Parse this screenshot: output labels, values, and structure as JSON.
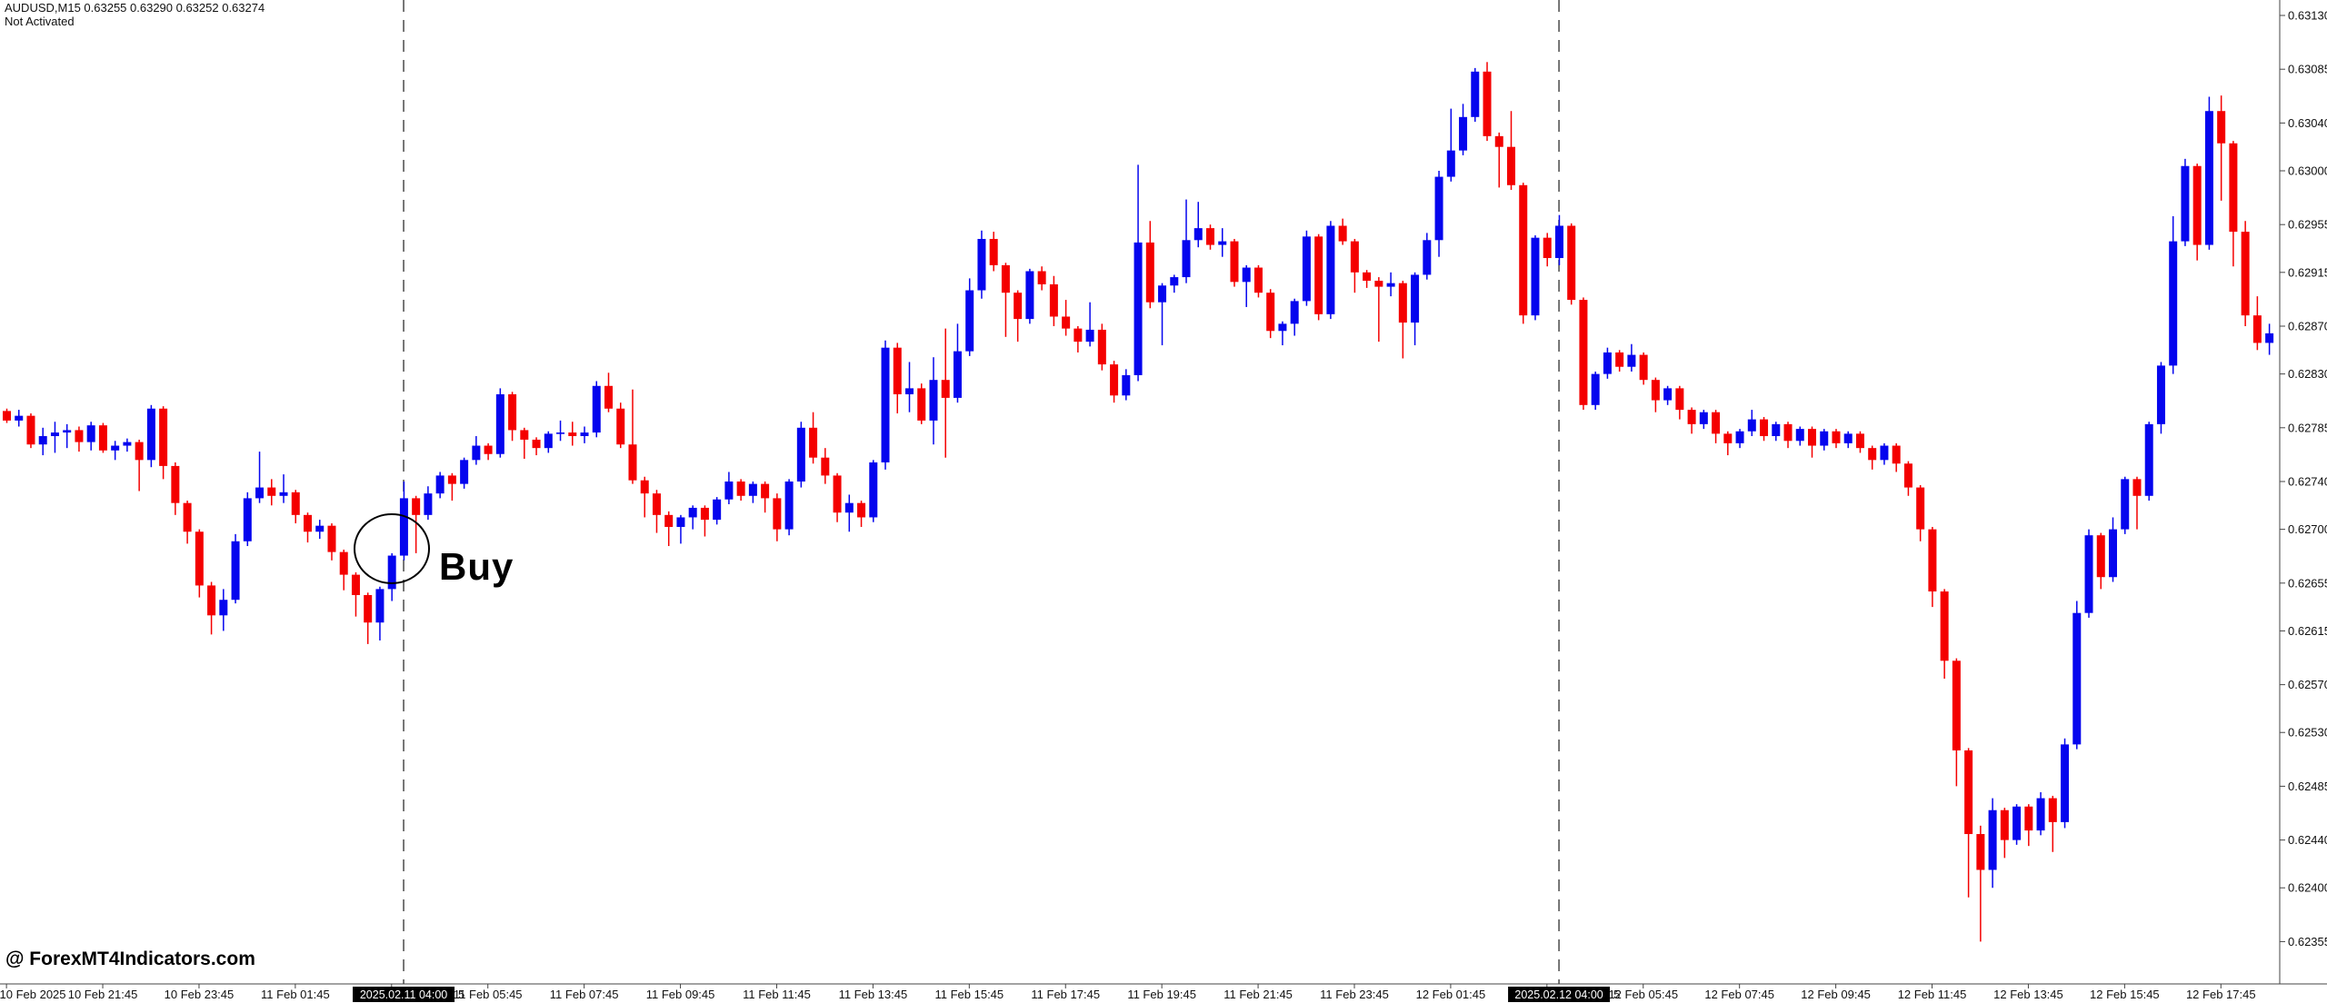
{
  "window": {
    "header_line1": "AUDUSD,M15  0.63255 0.63290 0.63252 0.63274",
    "header_line2": "Not Activated"
  },
  "watermark": "@ ForexMT4Indicators.com",
  "buy_annotation": {
    "label": "Buy"
  },
  "colors": {
    "background": "#FFFFFF",
    "bull": "#0505EE",
    "bear": "#F40000",
    "axis_text": "#111111",
    "axis_line": "#444444",
    "dashed_line": "#555555",
    "marker_box_bg": "#000000",
    "marker_box_text": "#FFFFFF",
    "annotation": "#000000"
  },
  "chart_data": {
    "type": "candlestick",
    "title": "AUDUSD,M15",
    "symbol": "AUDUSD",
    "timeframe": "M15",
    "grid": false,
    "price_axis_labels": [
      "0.63130",
      "0.63085",
      "0.63040",
      "0.63000",
      "0.62955",
      "0.62915",
      "0.62870",
      "0.62830",
      "0.62785",
      "0.62740",
      "0.62700",
      "0.62655",
      "0.62615",
      "0.62570",
      "0.62530",
      "0.62485",
      "0.62440",
      "0.62400",
      "0.62355"
    ],
    "time_axis_labels": [
      "10 Feb 2025",
      "10 Feb 21:45",
      "10 Feb 23:45",
      "11 Feb 01:45",
      "11 Feb 03:45",
      "11 Feb 05:45",
      "11 Feb 07:45",
      "11 Feb 09:45",
      "11 Feb 11:45",
      "11 Feb 13:45",
      "11 Feb 15:45",
      "11 Feb 17:45",
      "11 Feb 19:45",
      "11 Feb 21:45",
      "11 Feb 23:45",
      "12 Feb 01:45",
      "12 Feb 03:45",
      "12 Feb 05:45",
      "12 Feb 07:45",
      "12 Feb 09:45",
      "12 Feb 11:45",
      "12 Feb 13:45",
      "12 Feb 15:45",
      "12 Feb 17:45"
    ],
    "time_markers": [
      {
        "text": "2025.02.11 04:00",
        "tail": "5",
        "slot": 4
      },
      {
        "text": "2025.02.12 04:00",
        "tail": "5",
        "slot": 16
      }
    ],
    "price_scale_note": "values are price x 100000",
    "candles": [
      [
        62799,
        62801,
        62789,
        62791
      ],
      [
        62791,
        62800,
        62786,
        62795
      ],
      [
        62795,
        62797,
        62768,
        62771
      ],
      [
        62771,
        62785,
        62762,
        62778
      ],
      [
        62778,
        62790,
        62764,
        62781
      ],
      [
        62781,
        62788,
        62768,
        62783
      ],
      [
        62783,
        62786,
        62765,
        62773
      ],
      [
        62773,
        62790,
        62766,
        62787
      ],
      [
        62787,
        62789,
        62764,
        62766
      ],
      [
        62766,
        62774,
        62758,
        62770
      ],
      [
        62770,
        62776,
        62765,
        62773
      ],
      [
        62773,
        62775,
        62732,
        62758
      ],
      [
        62758,
        62804,
        62752,
        62801
      ],
      [
        62801,
        62803,
        62742,
        62753
      ],
      [
        62753,
        62756,
        62712,
        62722
      ],
      [
        62722,
        62724,
        62688,
        62698
      ],
      [
        62698,
        62700,
        62643,
        62653
      ],
      [
        62653,
        62656,
        62612,
        62628
      ],
      [
        62628,
        62650,
        62615,
        62641
      ],
      [
        62641,
        62696,
        62638,
        62690
      ],
      [
        62690,
        62731,
        62686,
        62726
      ],
      [
        62726,
        62765,
        62722,
        62735
      ],
      [
        62735,
        62742,
        62720,
        62728
      ],
      [
        62728,
        62746,
        62722,
        62731
      ],
      [
        62731,
        62733,
        62705,
        62712
      ],
      [
        62712,
        62714,
        62689,
        62698
      ],
      [
        62698,
        62708,
        62692,
        62703
      ],
      [
        62703,
        62705,
        62674,
        62681
      ],
      [
        62681,
        62683,
        62649,
        62662
      ],
      [
        62662,
        62664,
        62627,
        62645
      ],
      [
        62645,
        62647,
        62604,
        62622
      ],
      [
        62622,
        62652,
        62607,
        62650
      ],
      [
        62650,
        62680,
        62640,
        62678
      ],
      [
        62678,
        62740,
        62674,
        62726
      ],
      [
        62726,
        62728,
        62680,
        62712
      ],
      [
        62712,
        62736,
        62708,
        62730
      ],
      [
        62730,
        62748,
        62726,
        62745
      ],
      [
        62745,
        62747,
        62724,
        62738
      ],
      [
        62738,
        62760,
        62734,
        62758
      ],
      [
        62758,
        62778,
        62754,
        62770
      ],
      [
        62770,
        62772,
        62758,
        62763
      ],
      [
        62763,
        62818,
        62760,
        62813
      ],
      [
        62813,
        62815,
        62774,
        62783
      ],
      [
        62783,
        62785,
        62759,
        62775
      ],
      [
        62775,
        62777,
        62762,
        62768
      ],
      [
        62768,
        62782,
        62764,
        62780
      ],
      [
        62780,
        62791,
        62774,
        62781
      ],
      [
        62781,
        62790,
        62770,
        62778
      ],
      [
        62778,
        62786,
        62772,
        62781
      ],
      [
        62781,
        62824,
        62777,
        62820
      ],
      [
        62820,
        62831,
        62798,
        62801
      ],
      [
        62801,
        62806,
        62768,
        62771
      ],
      [
        62771,
        62817,
        62738,
        62741
      ],
      [
        62741,
        62744,
        62710,
        62730
      ],
      [
        62730,
        62733,
        62697,
        62712
      ],
      [
        62712,
        62715,
        62686,
        62702
      ],
      [
        62702,
        62712,
        62688,
        62710
      ],
      [
        62710,
        62720,
        62700,
        62718
      ],
      [
        62718,
        62720,
        62694,
        62708
      ],
      [
        62708,
        62727,
        62704,
        62725
      ],
      [
        62725,
        62748,
        62721,
        62740
      ],
      [
        62740,
        62742,
        62724,
        62728
      ],
      [
        62728,
        62740,
        62722,
        62738
      ],
      [
        62738,
        62740,
        62714,
        62726
      ],
      [
        62726,
        62730,
        62690,
        62700
      ],
      [
        62700,
        62742,
        62695,
        62740
      ],
      [
        62740,
        62790,
        62735,
        62785
      ],
      [
        62785,
        62798,
        62755,
        62760
      ],
      [
        62760,
        62768,
        62738,
        62745
      ],
      [
        62745,
        62747,
        62706,
        62714
      ],
      [
        62714,
        62729,
        62698,
        62722
      ],
      [
        62722,
        62724,
        62702,
        62710
      ],
      [
        62710,
        62758,
        62706,
        62756
      ],
      [
        62756,
        62858,
        62750,
        62852
      ],
      [
        62852,
        62856,
        62797,
        62813
      ],
      [
        62813,
        62840,
        62798,
        62818
      ],
      [
        62818,
        62822,
        62788,
        62791
      ],
      [
        62791,
        62844,
        62771,
        62825
      ],
      [
        62825,
        62868,
        62760,
        62810
      ],
      [
        62810,
        62872,
        62806,
        62849
      ],
      [
        62849,
        62910,
        62845,
        62900
      ],
      [
        62900,
        62950,
        62893,
        62943
      ],
      [
        62943,
        62949,
        62916,
        62921
      ],
      [
        62921,
        62923,
        62861,
        62898
      ],
      [
        62898,
        62900,
        62857,
        62876
      ],
      [
        62876,
        62918,
        62872,
        62916
      ],
      [
        62916,
        62920,
        62900,
        62905
      ],
      [
        62905,
        62912,
        62870,
        62878
      ],
      [
        62878,
        62892,
        62862,
        62868
      ],
      [
        62868,
        62870,
        62848,
        62857
      ],
      [
        62857,
        62890,
        62853,
        62867
      ],
      [
        62867,
        62872,
        62833,
        62838
      ],
      [
        62838,
        62841,
        62806,
        62812
      ],
      [
        62812,
        62834,
        62808,
        62829
      ],
      [
        62829,
        63005,
        62824,
        62940
      ],
      [
        62940,
        62958,
        62885,
        62890
      ],
      [
        62890,
        62906,
        62854,
        62904
      ],
      [
        62904,
        62913,
        62898,
        62911
      ],
      [
        62911,
        62976,
        62906,
        62942
      ],
      [
        62942,
        62974,
        62936,
        62952
      ],
      [
        62952,
        62955,
        62934,
        62938
      ],
      [
        62938,
        62952,
        62928,
        62941
      ],
      [
        62941,
        62943,
        62903,
        62907
      ],
      [
        62907,
        62921,
        62886,
        62919
      ],
      [
        62919,
        62921,
        62894,
        62898
      ],
      [
        62898,
        62901,
        62860,
        62866
      ],
      [
        62866,
        62874,
        62854,
        62872
      ],
      [
        62872,
        62893,
        62862,
        62891
      ],
      [
        62891,
        62950,
        62887,
        62945
      ],
      [
        62945,
        62947,
        62875,
        62880
      ],
      [
        62880,
        62958,
        62876,
        62954
      ],
      [
        62954,
        62960,
        62938,
        62941
      ],
      [
        62941,
        62943,
        62898,
        62915
      ],
      [
        62915,
        62917,
        62902,
        62908
      ],
      [
        62908,
        62911,
        62857,
        62903
      ],
      [
        62903,
        62915,
        62895,
        62906
      ],
      [
        62906,
        62908,
        62843,
        62873
      ],
      [
        62873,
        62915,
        62854,
        62913
      ],
      [
        62913,
        62948,
        62909,
        62942
      ],
      [
        62942,
        63000,
        62928,
        62995
      ],
      [
        62995,
        63052,
        62991,
        63017
      ],
      [
        63017,
        63056,
        63013,
        63045
      ],
      [
        63045,
        63086,
        63041,
        63083
      ],
      [
        63083,
        63091,
        63025,
        63029
      ],
      [
        63029,
        63032,
        62986,
        63020
      ],
      [
        63020,
        63050,
        62984,
        62988
      ],
      [
        62988,
        62990,
        62872,
        62879
      ],
      [
        62879,
        62946,
        62875,
        62944
      ],
      [
        62944,
        62948,
        62920,
        62927
      ],
      [
        62927,
        62963,
        62921,
        62954
      ],
      [
        62954,
        62956,
        62888,
        62892
      ],
      [
        62892,
        62894,
        62800,
        62804
      ],
      [
        62804,
        62832,
        62800,
        62830
      ],
      [
        62830,
        62852,
        62826,
        62848
      ],
      [
        62848,
        62850,
        62832,
        62836
      ],
      [
        62836,
        62855,
        62832,
        62846
      ],
      [
        62846,
        62848,
        62821,
        62825
      ],
      [
        62825,
        62827,
        62798,
        62808
      ],
      [
        62808,
        62820,
        62804,
        62818
      ],
      [
        62818,
        62820,
        62792,
        62800
      ],
      [
        62800,
        62802,
        62780,
        62788
      ],
      [
        62788,
        62800,
        62784,
        62798
      ],
      [
        62798,
        62800,
        62772,
        62780
      ],
      [
        62780,
        62782,
        62762,
        62772
      ],
      [
        62772,
        62784,
        62768,
        62782
      ],
      [
        62782,
        62800,
        62778,
        62792
      ],
      [
        62792,
        62794,
        62774,
        62778
      ],
      [
        62778,
        62790,
        62774,
        62788
      ],
      [
        62788,
        62790,
        62768,
        62774
      ],
      [
        62774,
        62786,
        62770,
        62784
      ],
      [
        62784,
        62786,
        62760,
        62770
      ],
      [
        62770,
        62784,
        62766,
        62782
      ],
      [
        62782,
        62784,
        62768,
        62772
      ],
      [
        62772,
        62782,
        62768,
        62780
      ],
      [
        62780,
        62782,
        62764,
        62768
      ],
      [
        62768,
        62770,
        62750,
        62758
      ],
      [
        62758,
        62772,
        62754,
        62770
      ],
      [
        62770,
        62772,
        62748,
        62755
      ],
      [
        62755,
        62757,
        62728,
        62735
      ],
      [
        62735,
        62737,
        62690,
        62700
      ],
      [
        62700,
        62702,
        62635,
        62648
      ],
      [
        62648,
        62650,
        62575,
        62590
      ],
      [
        62590,
        62592,
        62485,
        62515
      ],
      [
        62515,
        62517,
        62392,
        62445
      ],
      [
        62445,
        62452,
        62355,
        62415
      ],
      [
        62415,
        62475,
        62400,
        62465
      ],
      [
        62465,
        62467,
        62425,
        62440
      ],
      [
        62440,
        62470,
        62436,
        62468
      ],
      [
        62468,
        62470,
        62435,
        62448
      ],
      [
        62448,
        62480,
        62444,
        62475
      ],
      [
        62475,
        62477,
        62430,
        62455
      ],
      [
        62455,
        62525,
        62450,
        62520
      ],
      [
        62520,
        62640,
        62516,
        62630
      ],
      [
        62630,
        62700,
        62626,
        62695
      ],
      [
        62695,
        62697,
        62650,
        62660
      ],
      [
        62660,
        62710,
        62656,
        62700
      ],
      [
        62700,
        62744,
        62696,
        62742
      ],
      [
        62742,
        62744,
        62700,
        62728
      ],
      [
        62728,
        62790,
        62724,
        62788
      ],
      [
        62788,
        62840,
        62780,
        62837
      ],
      [
        62837,
        62962,
        62830,
        62941
      ],
      [
        62941,
        63010,
        62937,
        63004
      ],
      [
        63004,
        63006,
        62925,
        62938
      ],
      [
        62938,
        63062,
        62934,
        63050
      ],
      [
        63050,
        63063,
        62975,
        63023
      ],
      [
        63023,
        63025,
        62920,
        62949
      ],
      [
        62949,
        62958,
        62870,
        62879
      ],
      [
        62879,
        62895,
        62850,
        62856
      ],
      [
        62856,
        62872,
        62846,
        62864
      ]
    ],
    "buy_marker": {
      "candle_index": 33,
      "circle_center_price": 0.62683
    }
  }
}
